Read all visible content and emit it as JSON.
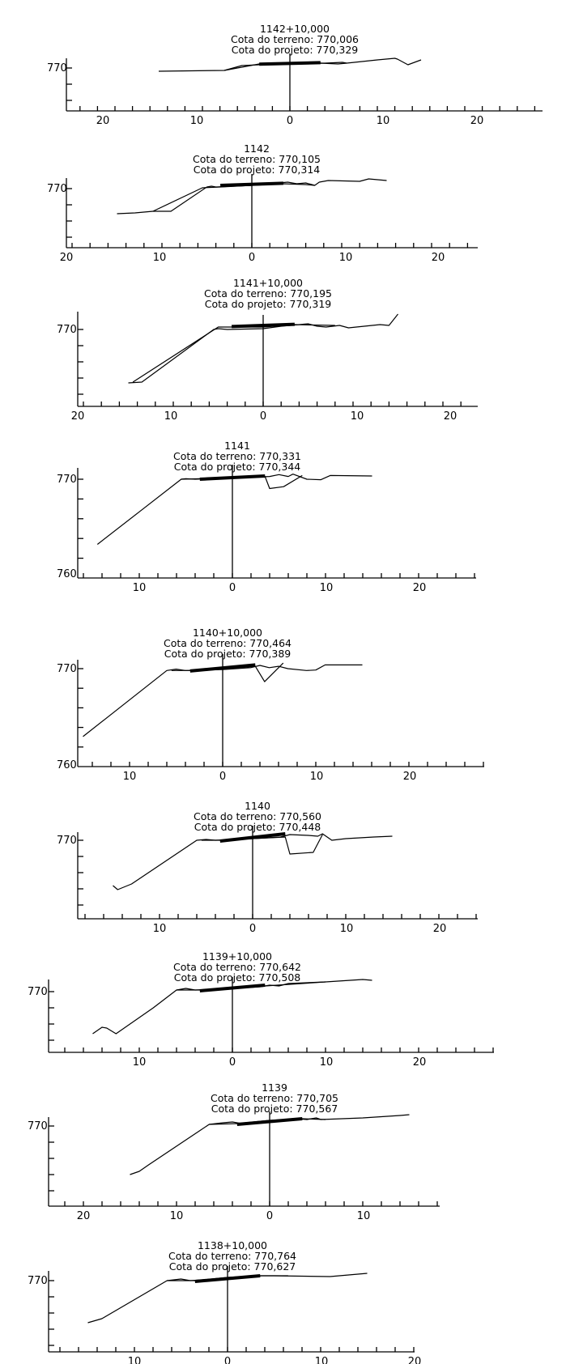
{
  "chart_data": [
    {
      "type": "line",
      "title": "1142+10,000",
      "terrain_label": "Cota do terreno:  770,006",
      "project_label": "Cota do projeto:  770,329",
      "y_tick_labels": [
        "770"
      ],
      "x_tick_labels": [
        "20",
        "10",
        "0",
        "10",
        "20"
      ],
      "series": [
        {
          "x": [
            -15,
            -7.5,
            -5,
            -4,
            -3.5,
            -1,
            0,
            1,
            3,
            4,
            6,
            6.5,
            10,
            12,
            12.3,
            13.5,
            15
          ],
          "y": [
            769.8,
            769.85,
            770.1,
            770.2,
            770.25,
            770.25,
            770.3,
            770.35,
            770.3,
            770.3,
            770.35,
            770.3,
            770.5,
            770.6,
            770.55,
            770.2,
            770.5
          ]
        },
        {
          "x": [
            -7.5,
            -5.5,
            -3.5,
            0,
            3.5,
            5.5,
            6.5
          ],
          "y": [
            769.85,
            770.15,
            770.2,
            770.25,
            770.3,
            770.25,
            770.3
          ]
        },
        {
          "x": [
            -3.5,
            3.5
          ],
          "y": [
            770.24,
            770.33
          ]
        }
      ]
    },
    {
      "type": "line",
      "title": "1142",
      "terrain_label": "Cota do terreno:  770,105",
      "project_label": "Cota do projeto:  770,314",
      "y_tick_labels": [
        "770"
      ],
      "x_tick_labels": [
        "20",
        "10",
        "0",
        "10",
        "20"
      ],
      "series": [
        {
          "x": [
            -15,
            -13,
            -11,
            -9,
            -5,
            -4.5,
            -4,
            -2,
            0,
            2,
            4,
            5,
            6,
            7,
            7.5,
            8.5,
            12,
            13,
            14,
            15
          ],
          "y": [
            768.45,
            768.5,
            768.6,
            768.6,
            770.1,
            770.15,
            770.1,
            770.15,
            770.2,
            770.3,
            770.4,
            770.3,
            770.35,
            770.2,
            770.4,
            770.5,
            770.45,
            770.6,
            770.55,
            770.5
          ]
        },
        {
          "x": [
            -11,
            -5.5,
            -3.5,
            0,
            3.5,
            6,
            7
          ],
          "y": [
            768.6,
            770.05,
            770.1,
            770.2,
            770.3,
            770.25,
            770.2
          ]
        },
        {
          "x": [
            -3.5,
            3.5
          ],
          "y": [
            770.2,
            770.33
          ]
        }
      ]
    },
    {
      "type": "line",
      "title": "1141+10,000",
      "terrain_label": "Cota do terreno:  770,195",
      "project_label": "Cota do projeto:  770,319",
      "y_tick_labels": [
        "770"
      ],
      "x_tick_labels": [
        "20",
        "10",
        "0",
        "10",
        "20"
      ],
      "series": [
        {
          "x": [
            -15,
            -13.5,
            -5.5,
            -5,
            -4,
            0,
            2,
            4,
            5,
            6,
            7,
            8.5,
            9.5,
            13,
            14,
            15
          ],
          "y": [
            766.7,
            766.75,
            770.0,
            770.05,
            770.0,
            770.05,
            770.2,
            770.3,
            770.35,
            770.2,
            770.15,
            770.25,
            770.1,
            770.3,
            770.25,
            770.95
          ]
        },
        {
          "x": [
            -14.5,
            -5,
            0,
            3.5,
            8
          ],
          "y": [
            766.75,
            770.15,
            770.15,
            770.3,
            770.25
          ]
        },
        {
          "x": [
            -3.5,
            3.5
          ],
          "y": [
            770.18,
            770.32
          ]
        }
      ]
    },
    {
      "type": "line",
      "title": "1141",
      "terrain_label": "Cota do terreno:  770,331",
      "project_label": "Cota do projeto:  770,344",
      "y_tick_labels": [
        "770",
        "760"
      ],
      "x_tick_labels": [
        "10",
        "0",
        "10",
        "20"
      ],
      "series": [
        {
          "x": [
            -14.5,
            -10,
            -5.5,
            -5,
            -4,
            0,
            3,
            4,
            5,
            6,
            6.5,
            8,
            9.5,
            10.5,
            15
          ],
          "y": [
            763.0,
            766.5,
            770.0,
            770.05,
            770.0,
            770.15,
            770.25,
            770.3,
            770.5,
            770.3,
            770.55,
            770.0,
            769.95,
            770.4,
            770.35
          ]
        },
        {
          "x": [
            -5.5,
            -3.5,
            0,
            3.5,
            4,
            5.5,
            7.5
          ],
          "y": [
            770.0,
            770.05,
            770.2,
            770.3,
            769.0,
            769.2,
            770.4
          ]
        },
        {
          "x": [
            -3.5,
            3.5
          ],
          "y": [
            770.0,
            770.35
          ]
        }
      ]
    },
    {
      "type": "line",
      "title": "1140+10,000",
      "terrain_label": "Cota do terreno:  770,464",
      "project_label": "Cota do projeto:  770,389",
      "y_tick_labels": [
        "770",
        "760"
      ],
      "x_tick_labels": [
        "10",
        "0",
        "10",
        "20"
      ],
      "series": [
        {
          "x": [
            -15,
            -6,
            -5,
            -4,
            0,
            3,
            4,
            5,
            6,
            7,
            9,
            10,
            11,
            15
          ],
          "y": [
            762.7,
            769.8,
            769.95,
            769.8,
            769.9,
            770.1,
            770.35,
            770.1,
            770.25,
            770.0,
            769.8,
            769.85,
            770.4,
            770.4
          ]
        },
        {
          "x": [
            -5.5,
            -3.5,
            0,
            3.5,
            4.5,
            6.5
          ],
          "y": [
            769.8,
            769.8,
            769.95,
            770.25,
            768.6,
            770.6
          ]
        },
        {
          "x": [
            -3.5,
            3.5
          ],
          "y": [
            769.75,
            770.4
          ]
        }
      ]
    },
    {
      "type": "line",
      "title": "1140",
      "terrain_label": "Cota do terreno:  770,560",
      "project_label": "Cota do projeto:  770,448",
      "y_tick_labels": [
        "770"
      ],
      "x_tick_labels": [
        "10",
        "0",
        "10",
        "20"
      ],
      "series": [
        {
          "x": [
            -15,
            -14.5,
            -13,
            -6,
            -5,
            -4,
            0,
            3,
            4,
            6,
            7,
            7.5,
            8.5,
            10,
            13,
            15
          ],
          "y": [
            767.2,
            766.95,
            767.3,
            770.0,
            770.05,
            770.0,
            770.1,
            770.2,
            770.35,
            770.3,
            770.25,
            770.4,
            770.0,
            770.1,
            770.2,
            770.25
          ]
        },
        {
          "x": [
            -5.5,
            -3.5,
            0,
            3.5,
            4,
            6.5,
            7.5
          ],
          "y": [
            770.0,
            770.0,
            770.1,
            770.2,
            769.15,
            769.25,
            770.35
          ]
        },
        {
          "x": [
            -3.5,
            3.5
          ],
          "y": [
            769.95,
            770.4
          ]
        }
      ]
    },
    {
      "type": "line",
      "title": "1139+10,000",
      "terrain_label": "Cota do terreno:  770,642",
      "project_label": "Cota do projeto:  770,508",
      "y_tick_labels": [
        "770"
      ],
      "x_tick_labels": [
        "10",
        "0",
        "10",
        "20"
      ],
      "series": [
        {
          "x": [
            -15,
            -14,
            -13.5,
            -12.5,
            -8.5,
            -6,
            -5,
            -4,
            0,
            3,
            4,
            5,
            6,
            10,
            14,
            15
          ],
          "y": [
            767.4,
            767.8,
            767.75,
            767.4,
            769.0,
            770.1,
            770.2,
            770.1,
            770.2,
            770.3,
            770.4,
            770.35,
            770.5,
            770.6,
            770.75,
            770.7
          ]
        },
        {
          "x": [
            -6,
            -3.5,
            0,
            3.5,
            10
          ],
          "y": [
            770.1,
            770.1,
            770.25,
            770.35,
            770.6
          ]
        },
        {
          "x": [
            -3.5,
            3.5
          ],
          "y": [
            770.05,
            770.4
          ]
        }
      ]
    },
    {
      "type": "line",
      "title": "1139",
      "terrain_label": "Cota do terreno:  770,705",
      "project_label": "Cota do projeto:  770,567",
      "y_tick_labels": [
        "770"
      ],
      "x_tick_labels": [
        "20",
        "10",
        "0",
        "10"
      ],
      "series": [
        {
          "x": [
            -15,
            -14,
            -13,
            -6.5,
            -5,
            -4,
            -3,
            0,
            3,
            4,
            5,
            5.5,
            10,
            14,
            15
          ],
          "y": [
            767.0,
            767.2,
            767.6,
            770.1,
            770.2,
            770.25,
            770.15,
            770.3,
            770.45,
            770.4,
            770.5,
            770.4,
            770.5,
            770.65,
            770.7
          ]
        },
        {
          "x": [
            -6.5,
            -3.5,
            0,
            3.5,
            6
          ],
          "y": [
            770.1,
            770.15,
            770.35,
            770.45,
            770.4
          ]
        },
        {
          "x": [
            -3.5,
            3.5
          ],
          "y": [
            770.1,
            770.45
          ]
        }
      ]
    },
    {
      "type": "line",
      "title": "1138+10,000",
      "terrain_label": "Cota do terreno:  770,764",
      "project_label": "Cota do projeto:  770,627",
      "y_tick_labels": [
        "770"
      ],
      "x_tick_labels": [
        "10",
        "0",
        "10",
        "20"
      ],
      "series": [
        {
          "x": [
            -15,
            -13.5,
            -6.5,
            -5,
            -4,
            0,
            2,
            3.5,
            5,
            11,
            13,
            15
          ],
          "y": [
            767.4,
            767.65,
            770.0,
            770.1,
            770.0,
            770.15,
            770.2,
            770.3,
            770.3,
            770.25,
            770.35,
            770.45
          ]
        },
        {
          "x": [
            -6.5,
            -3.5,
            0,
            3.5,
            6.5
          ],
          "y": [
            770.0,
            770.0,
            770.2,
            770.3,
            770.3
          ]
        },
        {
          "x": [
            -3.5,
            3.5
          ],
          "y": [
            769.95,
            770.3
          ]
        }
      ]
    }
  ]
}
